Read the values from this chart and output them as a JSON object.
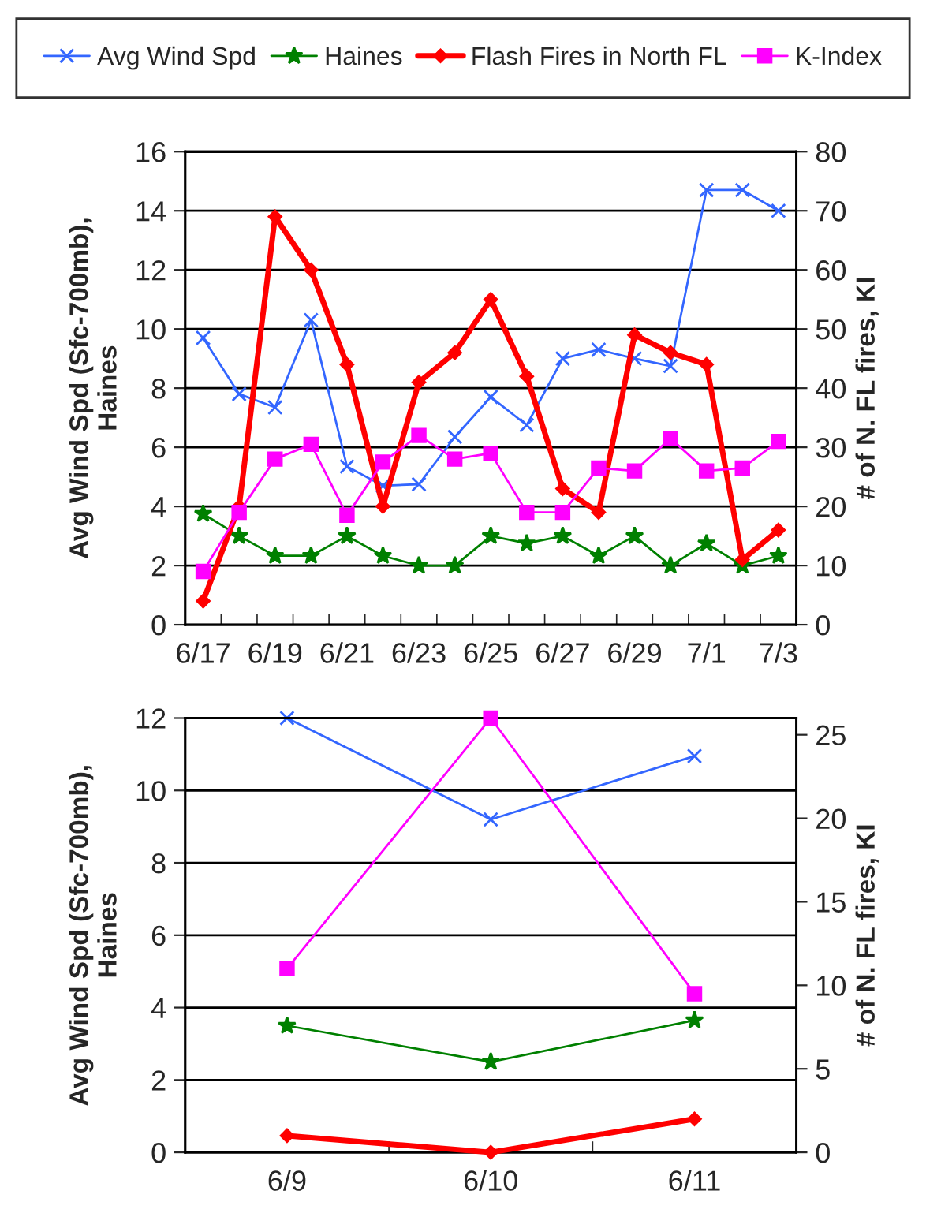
{
  "chart_data": [
    {
      "type": "line",
      "ylabel": "Avg Wind Spd (Sfc-700mb),\nHaines",
      "y2label": "# of N. FL fires, KI",
      "categories": [
        "6/17",
        null,
        "6/19",
        null,
        "6/21",
        null,
        "6/23",
        null,
        "6/25",
        null,
        "6/27",
        null,
        "6/29",
        null,
        "7/1",
        null,
        "7/3"
      ],
      "ylim": [
        0,
        16
      ],
      "yticks": [
        0,
        2,
        4,
        6,
        8,
        10,
        12,
        14,
        16
      ],
      "y2lim": [
        0,
        80
      ],
      "y2ticks": [
        0,
        10,
        20,
        30,
        40,
        50,
        60,
        70,
        80
      ],
      "grid": "y",
      "legend": "top",
      "series": [
        {
          "name": "Avg Wind Spd",
          "color": "#3366ff",
          "marker": "cross",
          "values": [
            9.7,
            7.8,
            7.35,
            10.3,
            5.35,
            4.7,
            4.75,
            6.35,
            7.7,
            6.75,
            9.0,
            9.3,
            9.0,
            8.75,
            14.7,
            14.7,
            14.0
          ]
        },
        {
          "name": "Haines",
          "color": "#008000",
          "marker": "star",
          "values": [
            3.75,
            3,
            2.33,
            2.33,
            3,
            2.33,
            2,
            2,
            3,
            2.75,
            3,
            2.33,
            3,
            2,
            2.75,
            2,
            2.33
          ]
        },
        {
          "name": "Flash Fires in North FL",
          "color": "#ff0000",
          "marker": "diamond",
          "axis": "y2",
          "values": [
            4,
            20,
            69,
            60,
            44,
            20,
            41,
            46,
            55,
            42,
            23,
            19,
            49,
            46,
            44,
            11,
            16
          ]
        },
        {
          "name": "K-Index",
          "color": "#ff00ff",
          "marker": "square",
          "axis": "y2",
          "values": [
            9,
            19,
            28,
            30.5,
            18.5,
            27.5,
            32,
            28,
            29,
            19,
            19,
            26.5,
            26,
            31.5,
            26,
            26.5,
            31
          ]
        }
      ]
    },
    {
      "type": "line",
      "ylabel": "Avg Wind Spd (Sfc-700mb),\nHaines",
      "y2label": "# of N. FL fires, KI",
      "categories": [
        "6/9",
        "6/10",
        "6/11"
      ],
      "ylim": [
        0,
        12
      ],
      "yticks": [
        0,
        2,
        4,
        6,
        8,
        10,
        12
      ],
      "y2lim": [
        0,
        26
      ],
      "y2ticks": [
        0,
        5,
        10,
        15,
        20,
        25
      ],
      "grid": "y",
      "series": [
        {
          "color": "#3366ff",
          "marker": "cross",
          "values": [
            12,
            9.2,
            10.95
          ]
        },
        {
          "color": "#008000",
          "marker": "star",
          "values": [
            3.5,
            2.5,
            3.65
          ]
        },
        {
          "color": "#ff0000",
          "marker": "diamond",
          "axis": "y2",
          "values": [
            1,
            0,
            2
          ]
        },
        {
          "color": "#ff00ff",
          "marker": "square",
          "axis": "y2",
          "values": [
            11,
            26,
            9.5
          ]
        }
      ]
    }
  ]
}
